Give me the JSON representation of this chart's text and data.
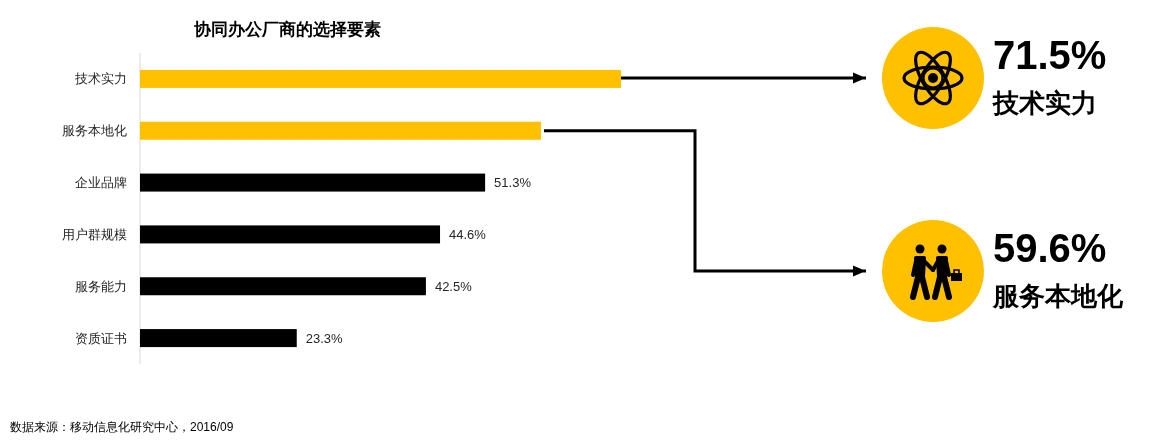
{
  "chart_data": {
    "type": "bar",
    "orientation": "horizontal",
    "title": "协同办公厂商的选择要素",
    "categories": [
      "技术实力",
      "服务本地化",
      "企业品牌",
      "用户群规模",
      "服务能力",
      "资质证书"
    ],
    "values": [
      71.5,
      59.6,
      51.3,
      44.6,
      42.5,
      23.3
    ],
    "colors": [
      "#ffc000",
      "#ffc000",
      "#000000",
      "#000000",
      "#000000",
      "#000000"
    ],
    "value_labels": [
      null,
      null,
      "51.3%",
      "44.6%",
      "42.5%",
      "23.3%"
    ],
    "annotations": [
      "71.5%",
      "59.6%",
      "数据来源：移动信息化研究中心，2016/09"
    ]
  }
}
